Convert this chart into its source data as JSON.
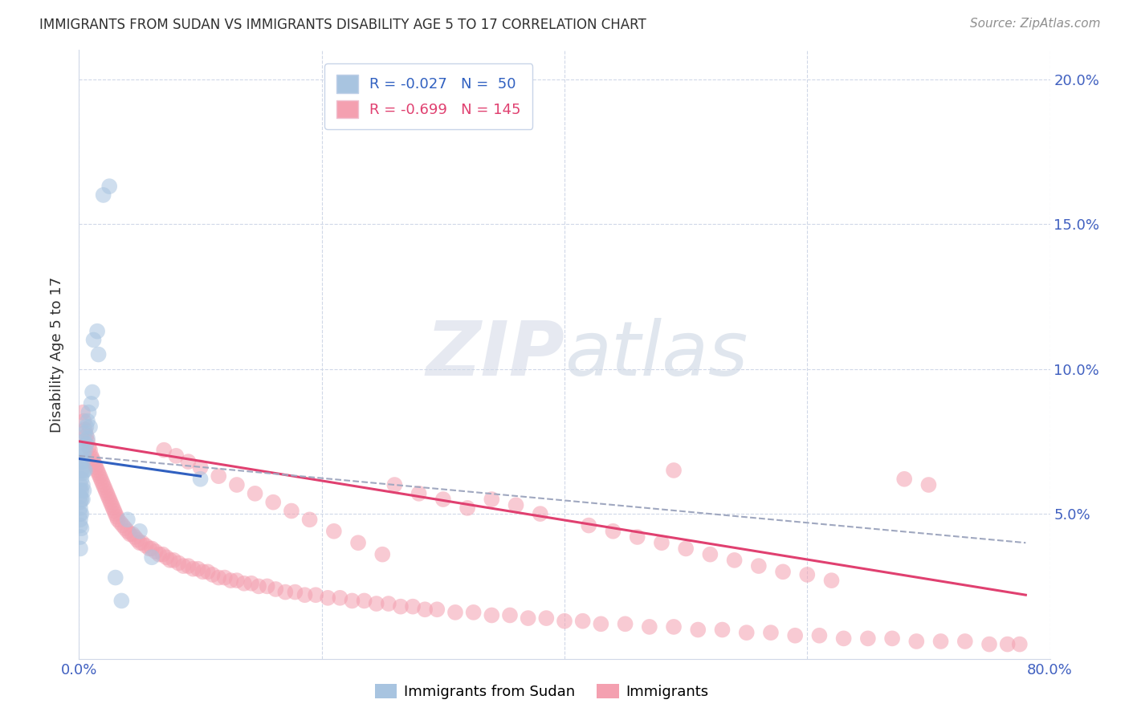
{
  "title": "IMMIGRANTS FROM SUDAN VS IMMIGRANTS DISABILITY AGE 5 TO 17 CORRELATION CHART",
  "source": "Source: ZipAtlas.com",
  "ylabel": "Disability Age 5 to 17",
  "xlim": [
    0,
    0.8
  ],
  "ylim": [
    0,
    0.21
  ],
  "yticks": [
    0.05,
    0.1,
    0.15,
    0.2
  ],
  "ytick_labels": [
    "5.0%",
    "10.0%",
    "15.0%",
    "20.0%"
  ],
  "xticks": [
    0.0,
    0.2,
    0.4,
    0.6,
    0.8
  ],
  "xtick_labels": [
    "0.0%",
    "",
    "",
    "",
    "80.0%"
  ],
  "blue_scatter_x": [
    0.001,
    0.001,
    0.001,
    0.001,
    0.001,
    0.001,
    0.001,
    0.001,
    0.001,
    0.001,
    0.002,
    0.002,
    0.002,
    0.002,
    0.002,
    0.002,
    0.002,
    0.002,
    0.003,
    0.003,
    0.003,
    0.003,
    0.003,
    0.004,
    0.004,
    0.004,
    0.004,
    0.005,
    0.005,
    0.005,
    0.006,
    0.006,
    0.007,
    0.007,
    0.008,
    0.009,
    0.01,
    0.011,
    0.012,
    0.015,
    0.016,
    0.02,
    0.025,
    0.03,
    0.035,
    0.04,
    0.05,
    0.06,
    0.1
  ],
  "blue_scatter_y": [
    0.06,
    0.058,
    0.056,
    0.054,
    0.052,
    0.05,
    0.048,
    0.046,
    0.042,
    0.038,
    0.07,
    0.068,
    0.065,
    0.062,
    0.058,
    0.055,
    0.05,
    0.045,
    0.072,
    0.068,
    0.064,
    0.06,
    0.055,
    0.075,
    0.07,
    0.065,
    0.058,
    0.078,
    0.072,
    0.065,
    0.08,
    0.074,
    0.082,
    0.076,
    0.085,
    0.08,
    0.088,
    0.092,
    0.11,
    0.113,
    0.105,
    0.16,
    0.163,
    0.028,
    0.02,
    0.048,
    0.044,
    0.035,
    0.062
  ],
  "pink_scatter_x": [
    0.003,
    0.004,
    0.005,
    0.006,
    0.007,
    0.008,
    0.009,
    0.01,
    0.011,
    0.012,
    0.013,
    0.014,
    0.015,
    0.016,
    0.017,
    0.018,
    0.019,
    0.02,
    0.021,
    0.022,
    0.023,
    0.024,
    0.025,
    0.026,
    0.027,
    0.028,
    0.029,
    0.03,
    0.031,
    0.032,
    0.034,
    0.036,
    0.038,
    0.04,
    0.042,
    0.044,
    0.046,
    0.048,
    0.05,
    0.052,
    0.055,
    0.058,
    0.06,
    0.063,
    0.066,
    0.069,
    0.072,
    0.075,
    0.078,
    0.082,
    0.086,
    0.09,
    0.094,
    0.098,
    0.102,
    0.106,
    0.11,
    0.115,
    0.12,
    0.125,
    0.13,
    0.136,
    0.142,
    0.148,
    0.155,
    0.162,
    0.17,
    0.178,
    0.186,
    0.195,
    0.205,
    0.215,
    0.225,
    0.235,
    0.245,
    0.255,
    0.265,
    0.275,
    0.285,
    0.295,
    0.31,
    0.325,
    0.34,
    0.355,
    0.37,
    0.385,
    0.4,
    0.415,
    0.43,
    0.45,
    0.47,
    0.49,
    0.51,
    0.53,
    0.55,
    0.57,
    0.59,
    0.61,
    0.63,
    0.65,
    0.67,
    0.69,
    0.71,
    0.73,
    0.75,
    0.765,
    0.775,
    0.34,
    0.36,
    0.38,
    0.42,
    0.44,
    0.46,
    0.48,
    0.5,
    0.52,
    0.54,
    0.56,
    0.58,
    0.6,
    0.62,
    0.26,
    0.28,
    0.3,
    0.32,
    0.49,
    0.68,
    0.7,
    0.07,
    0.08,
    0.09,
    0.1,
    0.115,
    0.13,
    0.145,
    0.16,
    0.175,
    0.19,
    0.21,
    0.23,
    0.25
  ],
  "pink_scatter_y": [
    0.085,
    0.082,
    0.079,
    0.077,
    0.075,
    0.073,
    0.072,
    0.07,
    0.069,
    0.068,
    0.067,
    0.066,
    0.065,
    0.064,
    0.063,
    0.062,
    0.061,
    0.06,
    0.059,
    0.058,
    0.057,
    0.056,
    0.055,
    0.054,
    0.053,
    0.052,
    0.051,
    0.05,
    0.049,
    0.048,
    0.047,
    0.046,
    0.045,
    0.044,
    0.043,
    0.043,
    0.042,
    0.041,
    0.04,
    0.04,
    0.039,
    0.038,
    0.038,
    0.037,
    0.036,
    0.036,
    0.035,
    0.034,
    0.034,
    0.033,
    0.032,
    0.032,
    0.031,
    0.031,
    0.03,
    0.03,
    0.029,
    0.028,
    0.028,
    0.027,
    0.027,
    0.026,
    0.026,
    0.025,
    0.025,
    0.024,
    0.023,
    0.023,
    0.022,
    0.022,
    0.021,
    0.021,
    0.02,
    0.02,
    0.019,
    0.019,
    0.018,
    0.018,
    0.017,
    0.017,
    0.016,
    0.016,
    0.015,
    0.015,
    0.014,
    0.014,
    0.013,
    0.013,
    0.012,
    0.012,
    0.011,
    0.011,
    0.01,
    0.01,
    0.009,
    0.009,
    0.008,
    0.008,
    0.007,
    0.007,
    0.007,
    0.006,
    0.006,
    0.006,
    0.005,
    0.005,
    0.005,
    0.055,
    0.053,
    0.05,
    0.046,
    0.044,
    0.042,
    0.04,
    0.038,
    0.036,
    0.034,
    0.032,
    0.03,
    0.029,
    0.027,
    0.06,
    0.057,
    0.055,
    0.052,
    0.065,
    0.062,
    0.06,
    0.072,
    0.07,
    0.068,
    0.066,
    0.063,
    0.06,
    0.057,
    0.054,
    0.051,
    0.048,
    0.044,
    0.04,
    0.036
  ],
  "blue_line": {
    "x0": 0.0,
    "x1": 0.1,
    "y0": 0.069,
    "y1": 0.063
  },
  "pink_line": {
    "x0": 0.0,
    "x1": 0.78,
    "y0": 0.075,
    "y1": 0.022
  },
  "dashed_line": {
    "x0": 0.0,
    "x1": 0.78,
    "y0": 0.07,
    "y1": 0.04
  },
  "scatter_color_blue": "#a8c4e0",
  "scatter_color_pink": "#f4a0b0",
  "line_color_blue": "#3060c0",
  "line_color_pink": "#e04070",
  "line_color_dashed": "#a0a8c0",
  "watermark_zip": "ZIP",
  "watermark_atlas": "atlas",
  "background_color": "#ffffff",
  "grid_color": "#d0d8e8",
  "tick_color": "#4060c0",
  "title_color": "#303030",
  "legend_blue_label": "R = -0.027   N =  50",
  "legend_pink_label": "R = -0.699   N = 145",
  "bottom_legend_blue": "Immigrants from Sudan",
  "bottom_legend_pink": "Immigrants"
}
